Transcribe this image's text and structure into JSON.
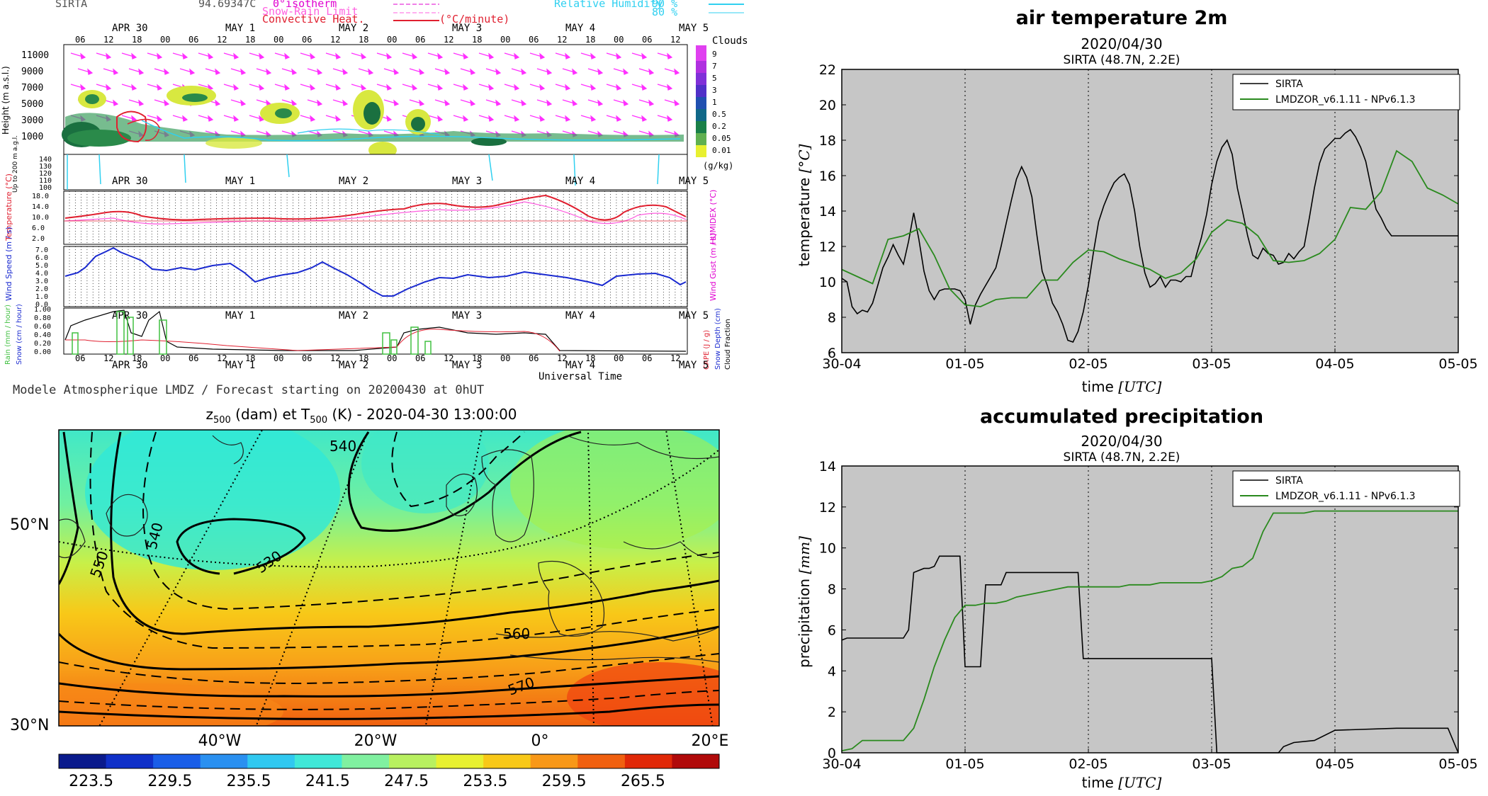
{
  "meteogram": {
    "station": "SIRTA",
    "value": "94.69347C",
    "legend_isotherm": "0°isotherm",
    "legend_snow": "Snow-Rain Limit",
    "legend_conv": "Convective Heat.",
    "legend_unit": "(°C/minute)",
    "legend_rh": "Relative Humidity",
    "legend_rh90": "90 %",
    "legend_rh80": "80 %",
    "days": [
      "APR 30",
      "MAY 1",
      "MAY 2",
      "MAY 3",
      "MAY 4",
      "MAY 5"
    ],
    "hours": [
      "06",
      "12",
      "18",
      "00"
    ],
    "clouds_title": "Clouds",
    "clouds_unit": "(g/kg)",
    "clouds_levels": [
      "9",
      "7",
      "5",
      "3",
      "1",
      "0.5",
      "0.2",
      "0.05",
      "0.01"
    ],
    "height_label": "Height (m a.s.l.)",
    "height_ticks": [
      "11000",
      "9000",
      "7000",
      "5000",
      "3000",
      "1000"
    ],
    "low_label": "Up to 200 m a.g.l.",
    "low_ticks": [
      "140",
      "130",
      "120",
      "110",
      "100"
    ],
    "temp_label": "Temperature (°C)",
    "humidex_label": "HUMIDEX (°C)",
    "temp_ticks": [
      "18.0",
      "14.0",
      "10.0",
      "6.0",
      "2.0"
    ],
    "wind_label": "Wind Speed (m / s)",
    "gust_label": "Wind Gust (m / s)",
    "wind_ticks": [
      "7.0",
      "6.0",
      "5.0",
      "4.0",
      "3.0",
      "2.0",
      "1.0",
      "0.0"
    ],
    "rain_label": "Rain (mm / hour)",
    "snow_label": "Snow (cm / hour)",
    "cape_label": "CAPE (J / g)",
    "snowdepth_label": "Snow Depth (cm)",
    "cloudfrac_label": "Cloud Fraction",
    "rain_ticks": [
      "1.00",
      "0.80",
      "0.60",
      "0.40",
      "0.20",
      "0.00"
    ],
    "universal_time": "Universal Time",
    "footer": "Modele Atmospherique LMDZ / Forecast starting on 20200430 at 0hUT"
  },
  "map": {
    "title_prefix": "z",
    "title_sub1": "500",
    "title_mid": " (dam) et T",
    "title_sub2": "500",
    "title_suffix": " (K) - 2020-04-30 13:00:00",
    "lat_labels": [
      "50°N",
      "30°N"
    ],
    "lon_labels": [
      "40°W",
      "20°W",
      "0°",
      "20°E"
    ],
    "contour_labels": [
      "540",
      "550",
      "540",
      "530",
      "560",
      "570"
    ],
    "colorbar_ticks": [
      "223.5",
      "229.5",
      "235.5",
      "241.5",
      "247.5",
      "253.5",
      "259.5",
      "265.5"
    ],
    "colorbar_colors": [
      "#0a1a8c",
      "#1030c8",
      "#1a5ee8",
      "#2a90f0",
      "#30c8f0",
      "#40e8d8",
      "#80f0a0",
      "#b8f060",
      "#e8f030",
      "#f8c818",
      "#f89818",
      "#f06010",
      "#e02808",
      "#b00a0a"
    ]
  },
  "temp_chart": {
    "title": "air temperature 2m",
    "date": "2020/04/30",
    "station": "SIRTA (48.7N, 2.2E)",
    "xlabel_prefix": "time ",
    "xlabel_unit": "[UTC]",
    "ylabel_prefix": "temperature ",
    "ylabel_unit": "[°C]",
    "legend_obs": "SIRTA",
    "legend_model": "LMDZOR_v6.1.11 - NPv6.1.3"
  },
  "precip_chart": {
    "title": "accumulated precipitation",
    "date": "2020/04/30",
    "station": "SIRTA (48.7N, 2.2E)",
    "xlabel_prefix": "time ",
    "xlabel_unit": "[UTC]",
    "ylabel_prefix": "precipitation ",
    "ylabel_unit": "[mm]",
    "legend_obs": "SIRTA",
    "legend_model": "LMDZOR_v6.1.11 - NPv6.1.3"
  },
  "chart_data": [
    {
      "type": "line",
      "title": "air temperature 2m",
      "xlabel": "time [UTC]",
      "ylabel": "temperature [°C]",
      "x_tick_labels": [
        "30-04",
        "01-05",
        "02-05",
        "03-05",
        "04-05",
        "05-05"
      ],
      "y_ticks": [
        6,
        8,
        10,
        12,
        14,
        16,
        18,
        20,
        22
      ],
      "xlim": [
        0,
        120
      ],
      "ylim": [
        6,
        22
      ],
      "grid": true,
      "legend": "top-right",
      "series": [
        {
          "name": "SIRTA",
          "color": "#000000",
          "x": [
            0,
            1,
            2,
            3,
            4,
            5,
            6,
            7,
            8,
            9,
            10,
            11,
            12,
            13,
            14,
            15,
            16,
            17,
            18,
            19,
            20,
            21,
            22,
            23,
            24,
            25,
            26,
            27,
            28,
            29,
            30,
            31,
            32,
            33,
            34,
            35,
            36,
            37,
            38,
            39,
            40,
            41,
            42,
            43,
            44,
            45,
            46,
            47,
            48,
            49,
            50,
            51,
            52,
            53,
            54,
            55,
            56,
            57,
            58,
            59,
            60,
            61,
            62,
            63,
            64,
            65,
            66,
            67,
            68,
            69,
            70,
            71,
            72,
            73,
            74,
            75,
            76,
            77,
            78,
            79,
            80,
            81,
            82,
            83,
            84,
            85,
            86,
            87,
            88,
            89,
            90,
            91,
            92,
            93,
            94,
            95,
            96,
            97,
            98,
            99,
            100,
            101,
            102,
            103,
            104,
            105,
            106,
            107,
            108,
            109,
            110,
            111,
            112,
            113,
            114,
            115,
            116,
            117,
            118,
            119,
            120
          ],
          "y": [
            10.2,
            10.0,
            8.6,
            8.2,
            8.4,
            8.3,
            8.8,
            9.8,
            10.8,
            11.4,
            12.1,
            11.5,
            11.0,
            12.3,
            13.9,
            12.4,
            10.6,
            9.5,
            9.0,
            9.5,
            9.6,
            9.6,
            9.6,
            9.5,
            9.0,
            7.6,
            8.7,
            9.3,
            9.8,
            10.3,
            10.8,
            12.0,
            13.3,
            14.6,
            15.8,
            16.5,
            15.9,
            14.8,
            12.6,
            10.6,
            9.8,
            8.8,
            8.3,
            7.6,
            6.7,
            6.6,
            7.2,
            8.3,
            9.8,
            11.7,
            13.4,
            14.3,
            15.0,
            15.6,
            15.9,
            16.1,
            15.5,
            14.0,
            12.0,
            10.5,
            9.7,
            9.9,
            10.3,
            9.7,
            10.1,
            10.1,
            10.0,
            10.3,
            10.3,
            11.5,
            12.5,
            13.8,
            15.5,
            16.8,
            17.6,
            18.0,
            17.2,
            15.3,
            14.0,
            12.6,
            11.5,
            11.3,
            11.9,
            11.6,
            11.5,
            11.0,
            11.1,
            11.6,
            11.3,
            11.7,
            12.0,
            13.6,
            15.3,
            16.7,
            17.5,
            17.8,
            18.1,
            18.1,
            18.4,
            18.6,
            18.2,
            17.6,
            16.8,
            15.4,
            14.1,
            13.6,
            13.0,
            12.6,
            12.6,
            12.6,
            12.6,
            12.6,
            12.6,
            12.6,
            12.6,
            12.6,
            12.6,
            12.6,
            12.6,
            12.6,
            12.6
          ]
        },
        {
          "name": "LMDZOR_v6.1.11 - NPv6.1.3",
          "color": "#2a8a1e",
          "x": [
            0,
            3,
            6,
            9,
            12,
            15,
            18,
            21,
            24,
            27,
            30,
            33,
            36,
            39,
            42,
            45,
            48,
            51,
            54,
            57,
            60,
            63,
            66,
            69,
            72,
            75,
            78,
            81,
            84,
            87,
            90,
            93,
            96,
            99,
            102,
            105,
            108,
            111,
            114,
            117,
            120
          ],
          "y": [
            10.7,
            10.3,
            9.9,
            12.4,
            12.6,
            13.0,
            11.5,
            9.6,
            8.7,
            8.6,
            9.0,
            9.1,
            9.1,
            10.1,
            10.1,
            11.1,
            11.8,
            11.7,
            11.3,
            11.0,
            10.7,
            10.2,
            10.5,
            11.3,
            12.8,
            13.5,
            13.3,
            12.6,
            11.2,
            11.1,
            11.2,
            11.6,
            12.4,
            14.2,
            14.1,
            15.1,
            17.4,
            16.8,
            15.3,
            14.9,
            14.4
          ]
        }
      ]
    },
    {
      "type": "line",
      "title": "accumulated precipitation",
      "xlabel": "time [UTC]",
      "ylabel": "precipitation [mm]",
      "x_tick_labels": [
        "30-04",
        "01-05",
        "02-05",
        "03-05",
        "04-05",
        "05-05"
      ],
      "y_ticks": [
        0,
        2,
        4,
        6,
        8,
        10,
        12,
        14
      ],
      "xlim": [
        0,
        120
      ],
      "ylim": [
        0,
        14
      ],
      "grid": true,
      "legend": "top-right",
      "series": [
        {
          "name": "SIRTA",
          "color": "#000000",
          "x": [
            0,
            1,
            2,
            12,
            13,
            14,
            15,
            16,
            17,
            18,
            19,
            20,
            21,
            22,
            23,
            24,
            25,
            26,
            27,
            28,
            29,
            30,
            31,
            32,
            44,
            45,
            46,
            47,
            53,
            54,
            59,
            71,
            72,
            73,
            74,
            77,
            80,
            84,
            85,
            86,
            88,
            92,
            96,
            108,
            118,
            120
          ],
          "y": [
            5.5,
            5.6,
            5.6,
            5.6,
            6.0,
            8.8,
            8.9,
            9.0,
            9.0,
            9.1,
            9.6,
            9.6,
            9.6,
            9.6,
            9.6,
            4.2,
            4.2,
            4.2,
            4.2,
            8.2,
            8.2,
            8.2,
            8.2,
            8.8,
            8.8,
            8.8,
            8.8,
            4.6,
            4.6,
            4.6,
            4.6,
            4.6,
            4.6,
            0,
            0,
            0,
            0,
            0,
            0,
            0.3,
            0.5,
            0.6,
            1.1,
            1.2,
            1.2,
            0.0
          ]
        },
        {
          "name": "LMDZOR_v6.1.11 - NPv6.1.3",
          "color": "#2a8a1e",
          "x": [
            0,
            2,
            4,
            6,
            8,
            10,
            12,
            14,
            16,
            18,
            20,
            22,
            24,
            26,
            28,
            30,
            32,
            34,
            36,
            38,
            40,
            42,
            44,
            46,
            48,
            50,
            52,
            54,
            56,
            58,
            60,
            62,
            64,
            66,
            68,
            70,
            72,
            74,
            76,
            78,
            80,
            82,
            84,
            86,
            88,
            90,
            92,
            94,
            96,
            98,
            100,
            102,
            104,
            106,
            108,
            110,
            112,
            114,
            116,
            118,
            120
          ],
          "y": [
            0.1,
            0.2,
            0.6,
            0.6,
            0.6,
            0.6,
            0.6,
            1.2,
            2.6,
            4.2,
            5.5,
            6.6,
            7.2,
            7.2,
            7.3,
            7.3,
            7.4,
            7.6,
            7.7,
            7.8,
            7.9,
            8.0,
            8.1,
            8.1,
            8.1,
            8.1,
            8.1,
            8.1,
            8.2,
            8.2,
            8.2,
            8.3,
            8.3,
            8.3,
            8.3,
            8.3,
            8.4,
            8.6,
            9.0,
            9.1,
            9.5,
            10.8,
            11.7,
            11.7,
            11.7,
            11.7,
            11.8,
            11.8,
            11.8,
            11.8,
            11.8,
            11.8,
            11.8,
            11.8,
            11.8,
            11.8,
            11.8,
            11.8,
            11.8,
            11.8,
            11.8
          ]
        }
      ]
    }
  ]
}
